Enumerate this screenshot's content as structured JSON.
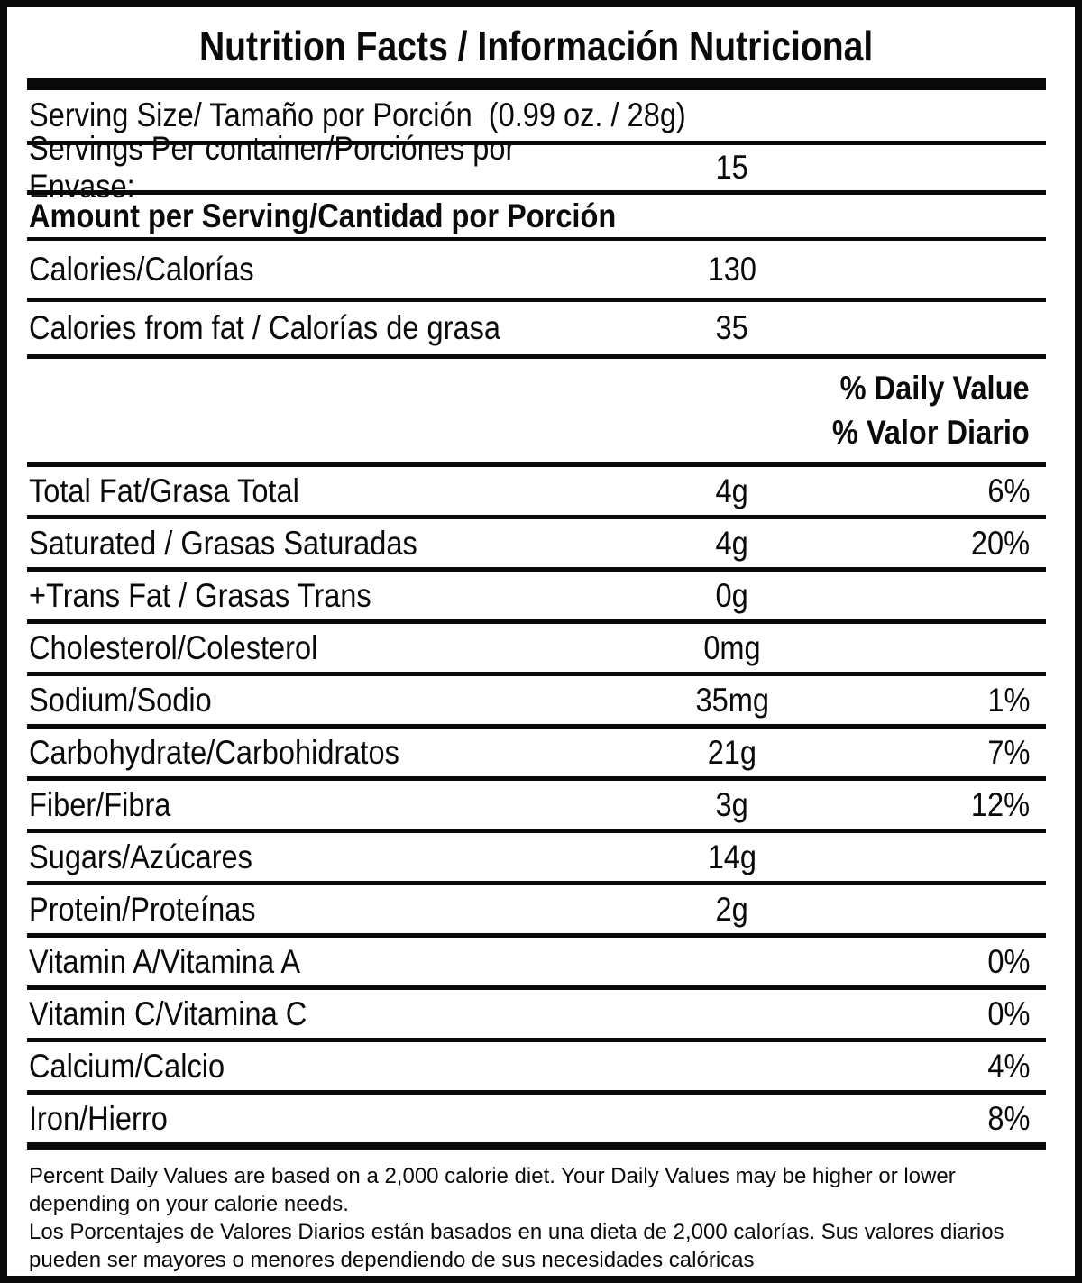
{
  "label": {
    "title": "Nutrition Facts / Información Nutricional",
    "serving_size_label": "Serving Size/ Tamaño por Porción  (0.99 oz. / 28g)",
    "servings_per_container": {
      "label": "Servings Per container/Porciónes por Envase:",
      "value": "15"
    },
    "amount_per_serving_label": "Amount per Serving/Cantidad por Porción",
    "calories": {
      "label": "Calories/Calorías",
      "value": "130"
    },
    "calories_from_fat": {
      "label": "Calories from fat / Calorías de grasa",
      "value": "35"
    },
    "daily_value_header": {
      "line1": "% Daily Value",
      "line2": "% Valor Diario"
    },
    "nutrients": [
      {
        "label": "Total Fat/Grasa Total",
        "amount": "4g",
        "dv": "6%"
      },
      {
        "label": "Saturated / Grasas Saturadas",
        "amount": "4g",
        "dv": "20%"
      },
      {
        "label": "+Trans Fat / Grasas Trans",
        "amount": "0g",
        "dv": ""
      },
      {
        "label": "Cholesterol/Colesterol",
        "amount": "0mg",
        "dv": ""
      },
      {
        "label": "Sodium/Sodio",
        "amount": "35mg",
        "dv": "1%"
      },
      {
        "label": "Carbohydrate/Carbohidratos",
        "amount": "21g",
        "dv": "7%"
      },
      {
        "label": "Fiber/Fibra",
        "amount": "3g",
        "dv": "12%"
      },
      {
        "label": "Sugars/Azúcares",
        "amount": "14g",
        "dv": ""
      },
      {
        "label": "Protein/Proteínas",
        "amount": "2g",
        "dv": ""
      },
      {
        "label": "Vitamin A/Vitamina A",
        "amount": "",
        "dv": "0%"
      },
      {
        "label": "Vitamin C/Vitamina C",
        "amount": "",
        "dv": "0%"
      },
      {
        "label": "Calcium/Calcio",
        "amount": "",
        "dv": "4%"
      },
      {
        "label": "Iron/Hierro",
        "amount": "",
        "dv": "8%"
      }
    ],
    "footnote_en": "Percent Daily Values are based on a 2,000 calorie diet. Your Daily Values may be higher or lower depending on your calorie needs.",
    "footnote_es": "Los Porcentajes de Valores Diarios están basados en una dieta de 2,000 calorías. Sus valores diarios pueden ser mayores o menores dependiendo de sus necesidades calóricas",
    "colors": {
      "text": "#0a0a0a",
      "background": "#ffffff",
      "border": "#0a0a0a"
    }
  }
}
